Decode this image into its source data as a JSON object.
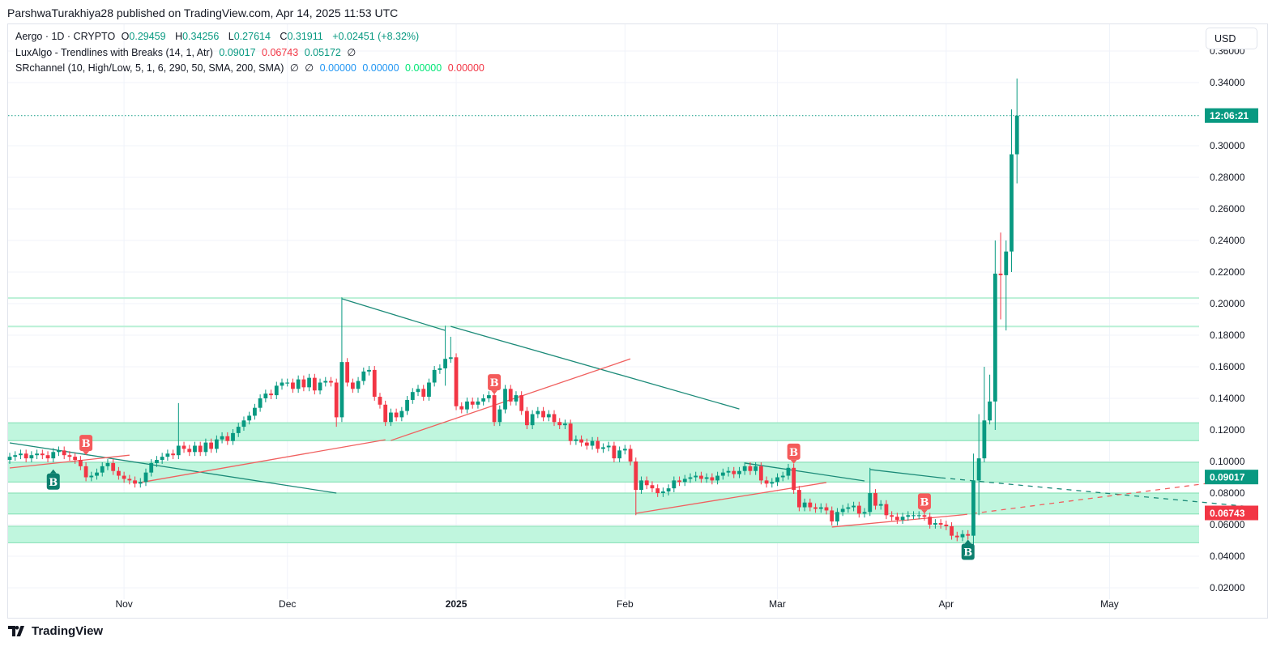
{
  "publisher_line": "ParshwaTurakhiya28 published on TradingView.com, Apr 14, 2025 11:53 UTC",
  "legend": {
    "symbol": "Aergo · 1D · CRYPTO",
    "o_label": "O",
    "o": "0.29459",
    "h_label": "H",
    "h": "0.34256",
    "l_label": "L",
    "l": "0.27614",
    "c_label": "C",
    "c": "0.31911",
    "change": "+0.02451 (+8.32%)",
    "ind1_name": "LuxAlgo - Trendlines with Breaks (14, 1, Atr)",
    "ind1_v1": "0.09017",
    "ind1_v2": "0.06743",
    "ind1_v3": "0.05172",
    "ind1_v4": "∅",
    "ind2_name": "SRchannel (10, High/Low, 5, 1, 6, 290, 50, SMA, 200, SMA)",
    "ind2_v1": "∅",
    "ind2_v2": "∅",
    "ind2_v3": "0.00000",
    "ind2_v4": "0.00000",
    "ind2_v5": "0.00000",
    "ind2_v6": "0.00000"
  },
  "currency_button": "USD",
  "footer_logo_text": "TradingView",
  "colors": {
    "up": "#089981",
    "down": "#f23645",
    "zone": "#bdf5dc",
    "zone_border": "#8fe3bb",
    "grid": "#f0f3fa"
  },
  "chart_data": {
    "type": "candlestick",
    "start_date": "2024-10-11",
    "closes": [
      0.103,
      0.104,
      0.105,
      0.102,
      0.104,
      0.105,
      0.104,
      0.102,
      0.106,
      0.107,
      0.104,
      0.103,
      0.101,
      0.097,
      0.09,
      0.091,
      0.093,
      0.097,
      0.099,
      0.094,
      0.091,
      0.089,
      0.088,
      0.086,
      0.087,
      0.093,
      0.099,
      0.101,
      0.103,
      0.105,
      0.104,
      0.11,
      0.108,
      0.106,
      0.11,
      0.106,
      0.112,
      0.108,
      0.114,
      0.116,
      0.113,
      0.118,
      0.122,
      0.126,
      0.129,
      0.134,
      0.14,
      0.143,
      0.142,
      0.148,
      0.15,
      0.15,
      0.146,
      0.152,
      0.147,
      0.153,
      0.145,
      0.15,
      0.151,
      0.15,
      0.128,
      0.163,
      0.15,
      0.146,
      0.151,
      0.157,
      0.158,
      0.141,
      0.136,
      0.125,
      0.131,
      0.128,
      0.132,
      0.139,
      0.144,
      0.146,
      0.141,
      0.15,
      0.158,
      0.159,
      0.165,
      0.166,
      0.135,
      0.133,
      0.138,
      0.136,
      0.138,
      0.14,
      0.142,
      0.125,
      0.133,
      0.146,
      0.138,
      0.142,
      0.132,
      0.123,
      0.13,
      0.132,
      0.128,
      0.13,
      0.125,
      0.123,
      0.124,
      0.113,
      0.114,
      0.112,
      0.11,
      0.113,
      0.108,
      0.109,
      0.11,
      0.102,
      0.107,
      0.108,
      0.1,
      0.082,
      0.088,
      0.085,
      0.083,
      0.08,
      0.081,
      0.083,
      0.088,
      0.087,
      0.089,
      0.09,
      0.091,
      0.089,
      0.09,
      0.088,
      0.091,
      0.093,
      0.094,
      0.092,
      0.094,
      0.097,
      0.094,
      0.097,
      0.088,
      0.086,
      0.087,
      0.09,
      0.091,
      0.096,
      0.082,
      0.071,
      0.074,
      0.071,
      0.07,
      0.071,
      0.069,
      0.062,
      0.068,
      0.07,
      0.071,
      0.072,
      0.067,
      0.068,
      0.08,
      0.072,
      0.073,
      0.066,
      0.065,
      0.063,
      0.065,
      0.066,
      0.066,
      0.066,
      0.065,
      0.06,
      0.061,
      0.06,
      0.059,
      0.053,
      0.052,
      0.054,
      0.053,
      0.088,
      0.102,
      0.126,
      0.138,
      0.219,
      0.218,
      0.233,
      0.29459,
      0.31911
    ],
    "first_open": 0.101,
    "wick_overrides": [
      {
        "date": "2024-11-11",
        "h": 0.137
      },
      {
        "date": "2024-12-11",
        "h": 0.204,
        "l": 0.125
      },
      {
        "date": "2024-12-10",
        "l": 0.122
      },
      {
        "date": "2024-12-30",
        "h": 0.186,
        "l": 0.148
      },
      {
        "date": "2024-12-31",
        "h": 0.179
      },
      {
        "date": "2025-02-03",
        "l": 0.066
      },
      {
        "date": "2025-03-18",
        "h": 0.096
      },
      {
        "date": "2025-04-06",
        "h": 0.105,
        "l": 0.046
      },
      {
        "date": "2025-04-07",
        "l": 0.066,
        "h": 0.13
      },
      {
        "date": "2025-04-08",
        "h": 0.16
      },
      {
        "date": "2025-04-09",
        "h": 0.155
      },
      {
        "date": "2025-04-10",
        "h": 0.24,
        "l": 0.12
      },
      {
        "date": "2025-04-11",
        "h": 0.245,
        "l": 0.19
      },
      {
        "date": "2025-04-12",
        "h": 0.24,
        "l": 0.183
      },
      {
        "date": "2025-04-13",
        "h": 0.323,
        "l": 0.22
      },
      {
        "date": "2025-04-14",
        "o": 0.29459,
        "h": 0.34256,
        "l": 0.27614
      }
    ],
    "last_price": 0.31911,
    "countdown": "12:06:21",
    "ylim": [
      0.01,
      0.37
    ],
    "y_ticks": [
      "0.36000",
      "0.34000",
      "0.30000",
      "0.28000",
      "0.26000",
      "0.24000",
      "0.22000",
      "0.20000",
      "0.18000",
      "0.16000",
      "0.14000",
      "0.12000",
      "0.10000",
      "0.08000",
      "0.06000",
      "0.04000",
      "0.02000"
    ],
    "x_ticks": [
      {
        "date": "2024-11-01",
        "label": "Nov",
        "bold": false
      },
      {
        "date": "2024-12-01",
        "label": "Dec",
        "bold": false
      },
      {
        "date": "2025-01-01",
        "label": "2025",
        "bold": true
      },
      {
        "date": "2025-02-01",
        "label": "Feb",
        "bold": false
      },
      {
        "date": "2025-03-01",
        "label": "Mar",
        "bold": false
      },
      {
        "date": "2025-04-01",
        "label": "Apr",
        "bold": false
      },
      {
        "date": "2025-05-01",
        "label": "May",
        "bold": false
      }
    ],
    "axis_labels": [
      {
        "value": 0.09017,
        "text": "0.09017",
        "color": "#089981"
      },
      {
        "value": 0.06743,
        "text": "0.06743",
        "color": "#f23645"
      }
    ],
    "zones": [
      [
        0.1132,
        0.1245
      ],
      [
        0.087,
        0.0995
      ],
      [
        0.0668,
        0.08
      ],
      [
        0.0485,
        0.059
      ]
    ],
    "levels": [
      0.2035,
      0.1855
    ],
    "downtrend_lines": [
      {
        "from": [
          "2024-10-11",
          0.1118
        ],
        "to": [
          "2024-12-10",
          0.08
        ]
      },
      {
        "from": [
          "2024-12-11",
          0.2031
        ],
        "to": [
          "2024-12-30",
          0.183
        ]
      },
      {
        "from": [
          "2024-12-31",
          0.1856
        ],
        "to": [
          "2025-02-22",
          0.1333
        ]
      },
      {
        "from": [
          "2025-02-23",
          0.099
        ],
        "to": [
          "2025-03-17",
          0.0877
        ]
      },
      {
        "from": [
          "2025-03-18",
          0.0949
        ],
        "to": [
          "2025-03-31",
          0.0897
        ]
      },
      {
        "from": [
          "2025-03-31",
          0.0897
        ],
        "to": [
          "2025-05-27",
          0.0713
        ],
        "dashed": true
      }
    ],
    "uptrend_lines": [
      {
        "from": [
          "2024-10-11",
          0.0959
        ],
        "to": [
          "2024-11-02",
          0.104
        ]
      },
      {
        "from": [
          "2024-11-04",
          0.0867
        ],
        "to": [
          "2024-12-19",
          0.1138
        ]
      },
      {
        "from": [
          "2024-12-20",
          0.1133
        ],
        "to": [
          "2025-02-02",
          0.165
        ]
      },
      {
        "from": [
          "2025-02-03",
          0.0672
        ],
        "to": [
          "2025-03-10",
          0.0867
        ]
      },
      {
        "from": [
          "2025-03-11",
          0.0585
        ],
        "to": [
          "2025-04-04",
          0.0662
        ]
      },
      {
        "from": [
          "2025-04-04",
          0.0662
        ],
        "to": [
          "2025-05-27",
          0.0897
        ],
        "dashed": true
      }
    ],
    "break_markers": [
      {
        "date": "2024-10-19",
        "price": 0.0955,
        "text": "B",
        "type": "up"
      },
      {
        "date": "2024-10-25",
        "price": 0.1035,
        "text": "B",
        "type": "down"
      },
      {
        "date": "2025-01-08",
        "price": 0.142,
        "text": "B",
        "type": "down"
      },
      {
        "date": "2025-03-04",
        "price": 0.098,
        "text": "B",
        "type": "down"
      },
      {
        "date": "2025-03-28",
        "price": 0.0665,
        "text": "B",
        "type": "down"
      },
      {
        "date": "2025-04-05",
        "price": 0.051,
        "text": "B",
        "type": "up"
      }
    ]
  }
}
